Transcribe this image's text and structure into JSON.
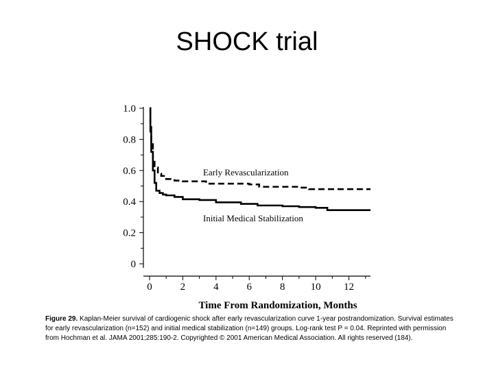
{
  "slide": {
    "title": "SHOCK  trial"
  },
  "chart_data": {
    "type": "line",
    "title": "",
    "xlabel": "Time From Randomization, Months",
    "ylabel": "",
    "xlim": [
      0,
      13.3
    ],
    "ylim": [
      0,
      1.0
    ],
    "x_ticks": [
      0,
      2,
      4,
      6,
      8,
      10,
      12
    ],
    "y_ticks": [
      {
        "value": 1.0,
        "label": "1.0"
      },
      {
        "value": 0.8,
        "label": "0.8"
      },
      {
        "value": 0.6,
        "label": "0.6"
      },
      {
        "value": 0.4,
        "label": "0.4"
      },
      {
        "value": 0.2,
        "label": "0.2"
      },
      {
        "value": 0,
        "label": "0"
      }
    ],
    "series": [
      {
        "name": "Early Revascularization",
        "style": "dashed",
        "color": "#000000",
        "x": [
          0,
          0.05,
          0.1,
          0.2,
          0.3,
          0.5,
          0.7,
          1.0,
          1.5,
          2.0,
          3.0,
          3.4,
          5.0,
          6.0,
          6.6,
          8.0,
          9.0,
          9.6,
          10.5,
          12.0,
          13.3
        ],
        "y": [
          1.0,
          0.88,
          0.78,
          0.67,
          0.62,
          0.58,
          0.565,
          0.545,
          0.535,
          0.53,
          0.53,
          0.515,
          0.515,
          0.51,
          0.495,
          0.495,
          0.49,
          0.48,
          0.48,
          0.48,
          0.48
        ]
      },
      {
        "name": "Initial Medical Stabilization",
        "style": "solid",
        "color": "#000000",
        "x": [
          0,
          0.05,
          0.1,
          0.2,
          0.3,
          0.4,
          0.6,
          0.8,
          1.0,
          1.5,
          2.0,
          3.0,
          4.0,
          5.5,
          6.5,
          8.0,
          9.0,
          10.0,
          10.7,
          12.0,
          13.3
        ],
        "y": [
          1.0,
          0.85,
          0.72,
          0.6,
          0.52,
          0.47,
          0.455,
          0.445,
          0.44,
          0.43,
          0.415,
          0.41,
          0.395,
          0.385,
          0.375,
          0.37,
          0.365,
          0.36,
          0.345,
          0.345,
          0.345
        ]
      }
    ]
  },
  "caption": {
    "label": "Figure 29.",
    "text": "Kaplan-Meier survival of cardiogenic shock after early revascularization curve 1-year postrandomization. Survival estimates for early revascularization (n=152) and initial medical stabilization (n=149) groups. Log-rank test P = 0.04. Reprinted with permission from Hochman et al. JAMA 2001;285:190-2. Copyrighted © 2001 American Medical Association. All rights reserved (184)."
  }
}
